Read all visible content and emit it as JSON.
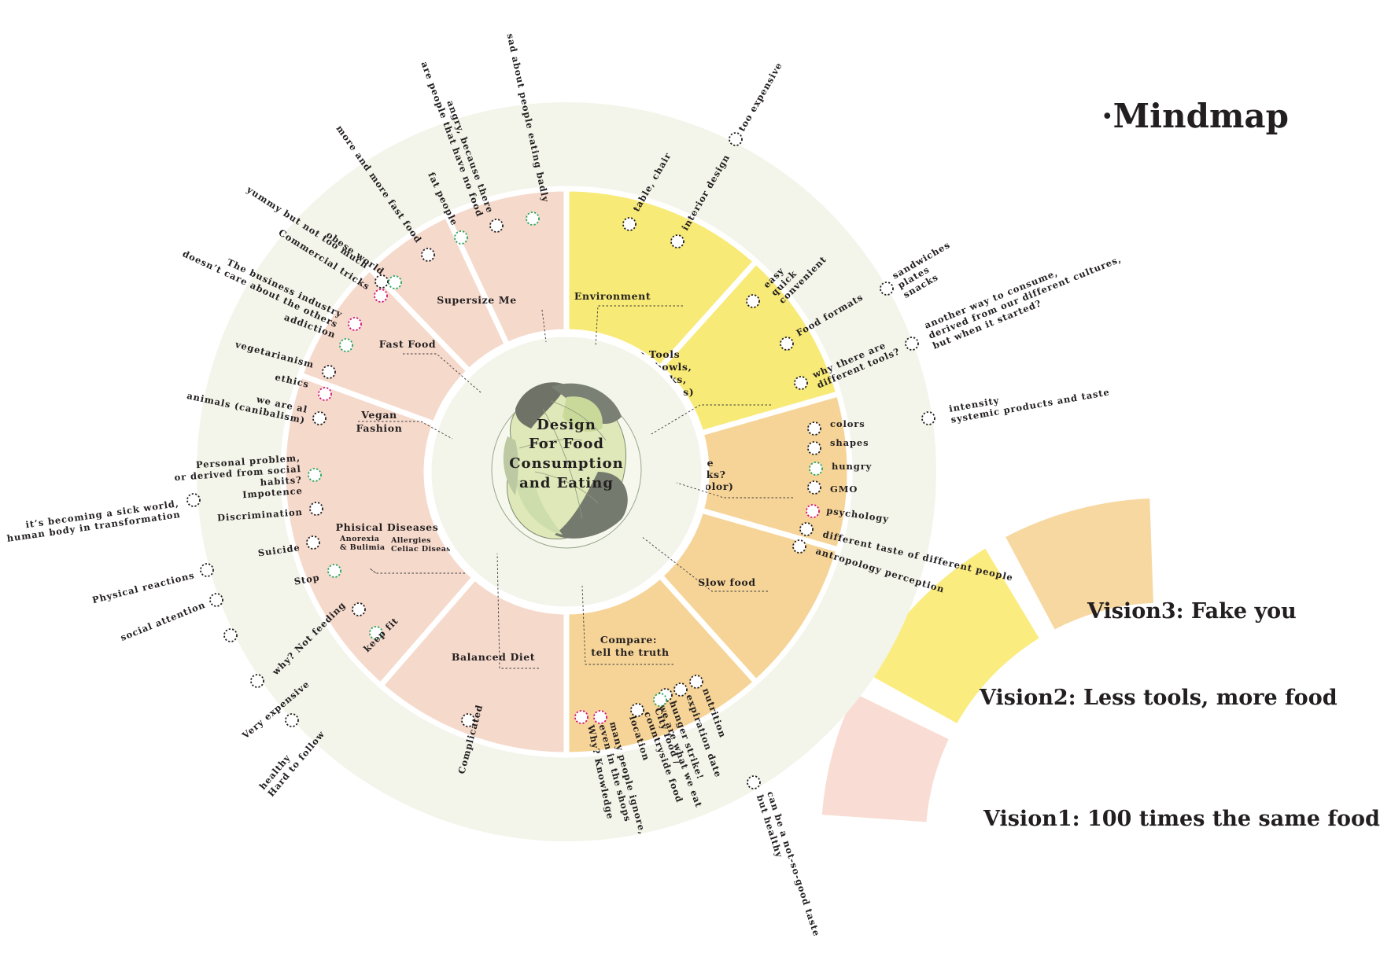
{
  "title": "·Mindmap",
  "center": {
    "lines": [
      "Design",
      "For Food",
      "Consumption",
      "and Eating"
    ]
  },
  "colors": {
    "outer_ring": "#f3f5ea",
    "center_disc": "#f3f5ea",
    "pink": "#f5d9cb",
    "yellow": "#f8ea77",
    "orange": "#f6d497",
    "dot_black": "#231f20",
    "dot_green": "#25a55f",
    "dot_magenta": "#d1127a",
    "vision1": "#f9dcd3",
    "vision2": "#fbec80",
    "vision3": "#f7d8a1"
  },
  "segments": [
    {
      "name": "The Environment",
      "color": "yellow",
      "lines": [
        "The Environment"
      ]
    },
    {
      "name": "The Tools",
      "color": "yellow",
      "lines": [
        "The Tools",
        "(forks, bowls,",
        "chopsticks,",
        "plates)"
      ]
    },
    {
      "name": "How the Food Looks?",
      "color": "orange",
      "lines": [
        "How the",
        "Food Looks?",
        "(Taste/Color)"
      ]
    },
    {
      "name": "Slow food",
      "color": "orange",
      "lines": [
        "Slow food"
      ]
    },
    {
      "name": "Compare",
      "color": "orange",
      "lines": [
        "Compare:",
        "tell the truth"
      ]
    },
    {
      "name": "Balanced Diet",
      "color": "pink",
      "lines": [
        "Balanced Diet"
      ]
    },
    {
      "name": "Phisical Diseases",
      "color": "pink",
      "lines": [
        "Phisical Diseases"
      ],
      "sub": [
        [
          "Anorexia",
          "& Bulimia"
        ],
        [
          "Allergies",
          "Celiac Disease"
        ]
      ]
    },
    {
      "name": "Vegan Fashion",
      "color": "pink",
      "lines": [
        "Vegan",
        "Fashion"
      ]
    },
    {
      "name": "Fast Food",
      "color": "pink",
      "lines": [
        "Fast Food"
      ]
    },
    {
      "name": "Supersize Me",
      "color": "pink",
      "lines": [
        "Supersize Me"
      ]
    }
  ],
  "leaves": [
    {
      "lines": [
        "table, chair"
      ],
      "dot": "black"
    },
    {
      "lines": [
        "interior design"
      ],
      "dot": "black"
    },
    {
      "lines": [
        "too expensive"
      ],
      "dot": "black"
    },
    {
      "lines": [
        "easy",
        "quick",
        "convenient"
      ],
      "dot": "black"
    },
    {
      "lines": [
        "Food formats"
      ],
      "dot": "black"
    },
    {
      "lines": [
        "why there are",
        "different tools?"
      ],
      "dot": "black"
    },
    {
      "lines": [
        "sandwiches",
        "plates",
        "snacks"
      ],
      "dot": "black"
    },
    {
      "lines": [
        "another way to consume,",
        "derived from our different cultures,",
        "but when it started?"
      ],
      "dot": "black"
    },
    {
      "lines": [
        "intensity",
        "systemic products and taste"
      ],
      "dot": "black"
    },
    {
      "lines": [
        "colors"
      ],
      "dot": "black"
    },
    {
      "lines": [
        "shapes"
      ],
      "dot": "black"
    },
    {
      "lines": [
        "hungry"
      ],
      "dot": "green"
    },
    {
      "lines": [
        "GMO"
      ],
      "dot": "black"
    },
    {
      "lines": [
        "psychology"
      ],
      "dot": "magenta"
    },
    {
      "lines": [
        "different taste of different people"
      ],
      "dot": "black"
    },
    {
      "lines": [
        "antropology perception"
      ],
      "dot": "black"
    },
    {
      "lines": [
        "nutrition"
      ],
      "dot": "black"
    },
    {
      "lines": [
        "expiration date"
      ],
      "dot": "black"
    },
    {
      "lines": [
        "hunger strike!",
        "we are what we eat"
      ],
      "dot": "black"
    },
    {
      "lines": [
        "City food /",
        "countryside food"
      ],
      "dot": "green"
    },
    {
      "lines": [
        "location"
      ],
      "dot": "black"
    },
    {
      "lines": [
        "many people ignore,",
        "even in the shops"
      ],
      "dot": "magenta"
    },
    {
      "lines": [
        "Why? Knowledge"
      ],
      "dot": "magenta"
    },
    {
      "lines": [
        "can be a not-so-good taste",
        "but healthy"
      ],
      "dot": "black"
    },
    {
      "lines": [
        "Complicated"
      ],
      "dot": "black"
    },
    {
      "lines": [
        "healthy",
        "Hard to follow"
      ],
      "dot": "black"
    },
    {
      "lines": [
        "Very expensive"
      ],
      "dot": "black"
    },
    {
      "lines": [
        "keep fit"
      ],
      "dot": "green"
    },
    {
      "lines": [
        "why? Not feeding"
      ],
      "dot": "black"
    },
    {
      "lines": [
        ""
      ],
      "dot": "black"
    },
    {
      "lines": [
        "social attention"
      ],
      "dot": "black"
    },
    {
      "lines": [
        "Physical reactions"
      ],
      "dot": "black"
    },
    {
      "lines": [
        "Stop"
      ],
      "dot": "green"
    },
    {
      "lines": [
        "Suicide"
      ],
      "dot": "black"
    },
    {
      "lines": [
        "Discrimination"
      ],
      "dot": "black"
    },
    {
      "lines": [
        "it’s becoming a sick world,",
        "human body in transformation"
      ],
      "dot": "black"
    },
    {
      "lines": [
        "Personal problem,",
        "or derived from social",
        "habits?",
        "Impotence"
      ],
      "dot": "green"
    },
    {
      "lines": [
        "we are al",
        "animals (canibalism)"
      ],
      "dot": "black"
    },
    {
      "lines": [
        "ethics"
      ],
      "dot": "magenta"
    },
    {
      "lines": [
        "vegetarianism"
      ],
      "dot": "black"
    },
    {
      "lines": [
        "addiction"
      ],
      "dot": "green"
    },
    {
      "lines": [
        "The business industry",
        "doesn’t care about the others"
      ],
      "dot": "magenta"
    },
    {
      "lines": [
        "Commercial tricks"
      ],
      "dot": "magenta"
    },
    {
      "lines": [
        "obese world"
      ],
      "dot": "green"
    },
    {
      "lines": [
        "yummy but not too much"
      ],
      "dot": "black"
    },
    {
      "lines": [
        "more and more fast food"
      ],
      "dot": "black"
    },
    {
      "lines": [
        "fat people"
      ],
      "dot": "green"
    },
    {
      "lines": [
        "angry, because there",
        "are people that have no food"
      ],
      "dot": "black"
    },
    {
      "lines": [
        "sad about people eating badly"
      ],
      "dot": "green"
    }
  ],
  "visions": [
    {
      "label": "Vision3: Fake you",
      "color": "vision3"
    },
    {
      "label": "Vision2: Less tools, more food",
      "color": "vision2"
    },
    {
      "label": "Vision1: 100 times the same food",
      "color": "vision1"
    }
  ]
}
